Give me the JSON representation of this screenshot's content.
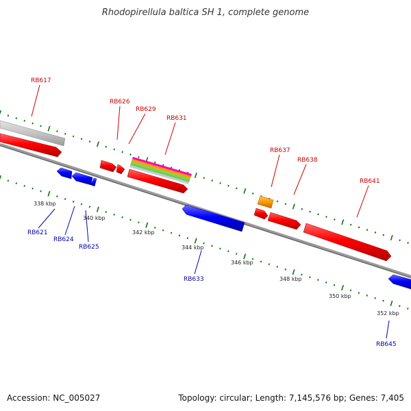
{
  "title": "Rhodopirellula baltica SH 1, complete genome",
  "footer": {
    "accession": "Accession: NC_005027",
    "summary": "Topology: circular; Length: 7,145,576 bp; Genes: 7,405"
  },
  "colors": {
    "forward_gene": "#ff0000",
    "reverse_gene": "#0000ff",
    "previous_gene": "#c0c0c0",
    "highlight_gene": "#ff9900",
    "backbone": "#888888",
    "tick_dots": "#007700",
    "forward_label": "#cc0000",
    "reverse_label": "#0000aa"
  },
  "genes_forward": [
    {
      "label": "RB617"
    },
    {
      "label": "RB626"
    },
    {
      "label": "RB629"
    },
    {
      "label": "RB631"
    },
    {
      "label": "RB637"
    },
    {
      "label": "RB638"
    },
    {
      "label": "RB641"
    }
  ],
  "genes_reverse": [
    {
      "label": "RB621"
    },
    {
      "label": "RB624"
    },
    {
      "label": "RB625"
    },
    {
      "label": "RB633"
    },
    {
      "label": "RB645"
    }
  ],
  "ticks": [
    {
      "label": "338 kbp"
    },
    {
      "label": "340 kbp"
    },
    {
      "label": "342 kbp"
    },
    {
      "label": "344 kbp"
    },
    {
      "label": "346 kbp"
    },
    {
      "label": "348 kbp"
    },
    {
      "label": "350 kbp"
    },
    {
      "label": "352 kbp"
    }
  ]
}
